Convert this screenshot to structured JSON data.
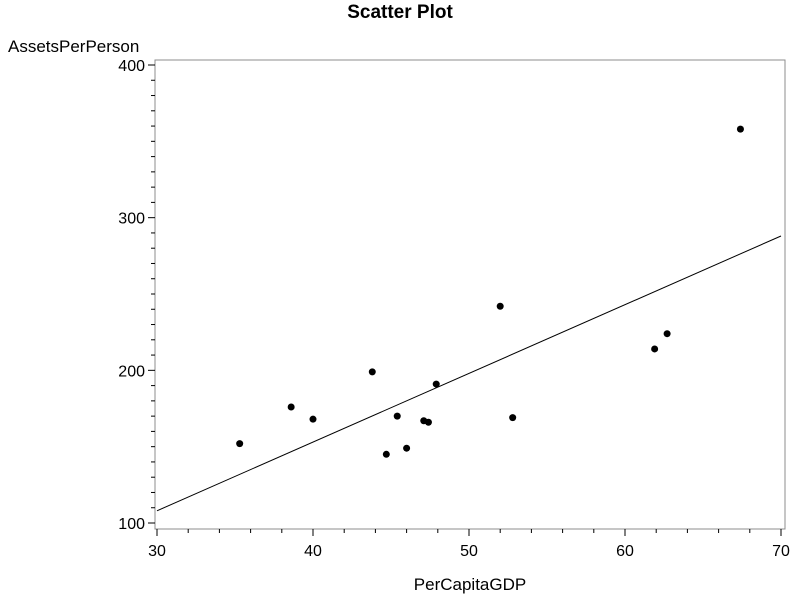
{
  "chart_data": {
    "type": "scatter",
    "title": "Scatter Plot",
    "xlabel": "PerCapitaGDP",
    "ylabel": "AssetsPerPerson",
    "xlim": [
      30,
      70
    ],
    "ylim": [
      100,
      400
    ],
    "x_ticks": [
      30,
      40,
      50,
      60,
      70
    ],
    "y_ticks": [
      100,
      200,
      300,
      400
    ],
    "grid": false,
    "points": [
      {
        "x": 35.3,
        "y": 152
      },
      {
        "x": 38.6,
        "y": 176
      },
      {
        "x": 40.0,
        "y": 168
      },
      {
        "x": 43.8,
        "y": 199
      },
      {
        "x": 44.7,
        "y": 145
      },
      {
        "x": 45.4,
        "y": 170
      },
      {
        "x": 46.0,
        "y": 149
      },
      {
        "x": 47.1,
        "y": 167
      },
      {
        "x": 47.4,
        "y": 166
      },
      {
        "x": 47.9,
        "y": 191
      },
      {
        "x": 52.0,
        "y": 242
      },
      {
        "x": 52.8,
        "y": 169
      },
      {
        "x": 61.9,
        "y": 214
      },
      {
        "x": 62.7,
        "y": 224
      },
      {
        "x": 67.4,
        "y": 358
      }
    ],
    "fit_line": {
      "x": [
        30,
        70
      ],
      "y": [
        108,
        288
      ]
    }
  }
}
